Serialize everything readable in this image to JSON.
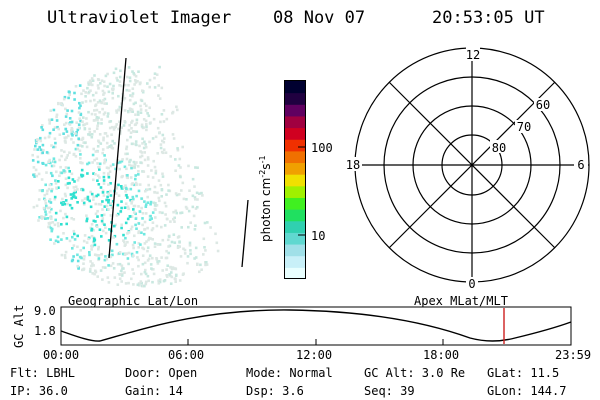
{
  "header": {
    "instrument": "Ultraviolet Imager",
    "date": "08 Nov 07",
    "time": "20:53:05 UT"
  },
  "colorbar": {
    "label": "photon cm",
    "exp1": "-2",
    "mid": "s",
    "exp2": "-1",
    "ticks": [
      "100",
      "10"
    ],
    "colors": [
      "#e8ffff",
      "#c8f0f8",
      "#a0e0e8",
      "#60d8d0",
      "#30d0b0",
      "#20e060",
      "#40f020",
      "#a0f000",
      "#f0e000",
      "#f0a000",
      "#f07000",
      "#f03000",
      "#d00020",
      "#a00040",
      "#600060",
      "#200040",
      "#000030"
    ]
  },
  "polar_grid": {
    "mlt_labels": [
      "12",
      "18",
      "6",
      "0"
    ],
    "lat_labels": [
      "60",
      "70",
      "80"
    ]
  },
  "orbit_plot": {
    "left_title": "Geographic Lat/Lon",
    "right_title": "Apex MLat/MLT",
    "ylabel": "GC Alt",
    "yticks": [
      "9.0",
      "1.8"
    ],
    "xticks": [
      "00:00",
      "06:00",
      "12:00",
      "18:00",
      "23:59"
    ],
    "marker_color": "#cc2020"
  },
  "info": {
    "flt": "Flt: LBHL",
    "door": "Door: Open",
    "mode": "Mode: Normal",
    "gcalt": "GC Alt: 3.0 Re",
    "glat": "GLat:  11.5",
    "ip": "IP: 36.0",
    "gain": "Gain: 14",
    "dsp": "Dsp:    3.6",
    "seq": "Seq: 39",
    "glon": "GLon: 144.7"
  }
}
